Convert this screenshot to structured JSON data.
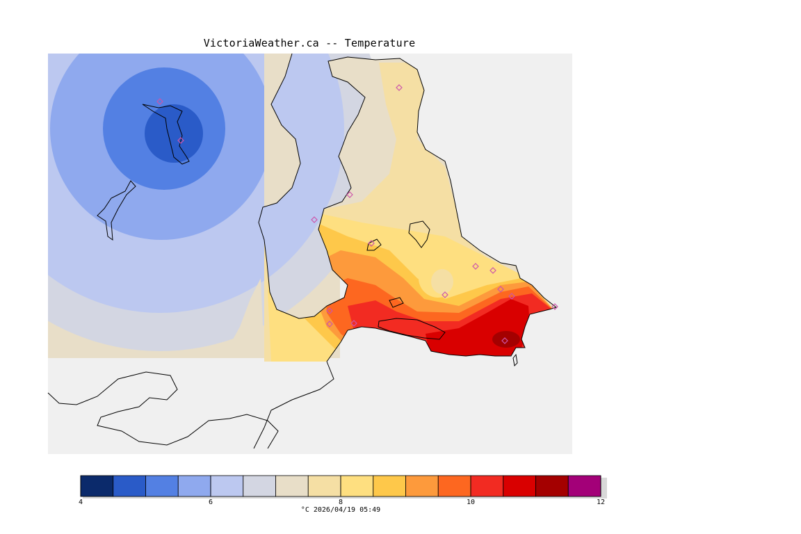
{
  "title": "VictoriaWeather.ca  --  Temperature",
  "legend": {
    "caption": "°C  2026/04/19 05:49",
    "tick_labels": [
      "4",
      "6",
      "8",
      "10",
      "12"
    ],
    "min": 4,
    "max": 12,
    "colors": [
      "#0b2a6b",
      "#2a5bc8",
      "#5380e3",
      "#8fa9ee",
      "#bcc8f0",
      "#d3d6e2",
      "#e8dec8",
      "#f5dfa4",
      "#fedf80",
      "#fec84a",
      "#fd9a3c",
      "#fd6720",
      "#f22b22",
      "#d90000",
      "#a40000",
      "#a30078"
    ]
  },
  "map": {
    "background_color": "#f0f0f0",
    "station_marker_color": "#cc55aa"
  }
}
